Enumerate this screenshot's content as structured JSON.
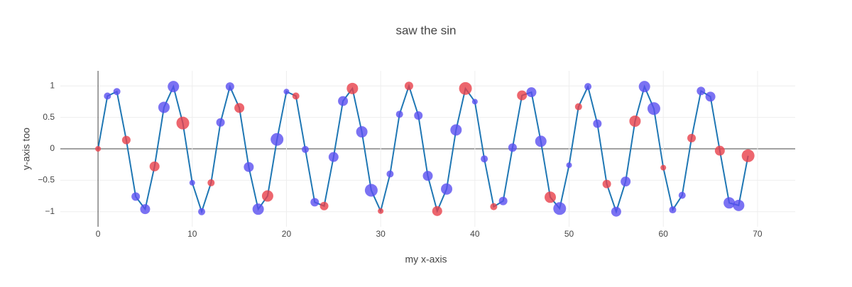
{
  "chart_data": {
    "type": "scatter",
    "title": "saw the sin",
    "x_label": "my x-axis",
    "y_label": "y-axis too",
    "x": [
      0,
      1,
      2,
      3,
      4,
      5,
      6,
      7,
      8,
      9,
      10,
      11,
      12,
      13,
      14,
      15,
      16,
      17,
      18,
      19,
      20,
      21,
      22,
      23,
      24,
      25,
      26,
      27,
      28,
      29,
      30,
      31,
      32,
      33,
      34,
      35,
      36,
      37,
      38,
      39,
      40,
      41,
      42,
      43,
      44,
      45,
      46,
      47,
      48,
      49,
      50,
      51,
      52,
      53,
      54,
      55,
      56,
      57,
      58,
      59,
      60,
      61,
      62,
      63,
      64,
      65,
      66,
      67,
      68,
      69
    ],
    "values": [
      0,
      0.84,
      0.91,
      0.14,
      -0.76,
      -0.96,
      -0.28,
      0.66,
      0.99,
      0.41,
      -0.54,
      -1.0,
      -0.54,
      0.42,
      0.99,
      0.65,
      -0.29,
      -0.96,
      -0.75,
      0.15,
      0.91,
      0.84,
      -0.01,
      -0.85,
      -0.91,
      -0.13,
      0.76,
      0.96,
      0.27,
      -0.66,
      -0.99,
      -0.4,
      0.55,
      1.0,
      0.53,
      -0.43,
      -0.99,
      -0.64,
      0.3,
      0.96,
      0.75,
      -0.16,
      -0.92,
      -0.83,
      0.02,
      0.85,
      0.9,
      0.12,
      -0.77,
      -0.95,
      -0.26,
      0.67,
      0.99,
      0.4,
      -0.56,
      -1.0,
      -0.52,
      0.44,
      0.99,
      0.64,
      -0.3,
      -0.97,
      -0.74,
      0.17,
      0.92,
      0.83,
      -0.03,
      -0.86,
      -0.9,
      -0.11
    ],
    "sizes": [
      8,
      10,
      10,
      12,
      12,
      14,
      14,
      16,
      16,
      18,
      8,
      10,
      10,
      12,
      12,
      14,
      14,
      16,
      16,
      18,
      8,
      10,
      10,
      12,
      12,
      14,
      14,
      16,
      16,
      18,
      8,
      10,
      10,
      12,
      12,
      14,
      14,
      16,
      16,
      18,
      8,
      10,
      10,
      12,
      12,
      14,
      14,
      16,
      16,
      18,
      8,
      10,
      10,
      12,
      12,
      14,
      14,
      16,
      16,
      18,
      8,
      10,
      10,
      12,
      12,
      14,
      14,
      16,
      16,
      18
    ],
    "marker_colors": [
      "#e8404a",
      "#5a4ff0",
      "#5a4ff0",
      "#e8404a",
      "#5a4ff0",
      "#5a4ff0",
      "#e8404a",
      "#5a4ff0",
      "#5a4ff0",
      "#e8404a",
      "#5a4ff0",
      "#5a4ff0",
      "#e8404a",
      "#5a4ff0",
      "#5a4ff0",
      "#e8404a",
      "#5a4ff0",
      "#5a4ff0",
      "#e8404a",
      "#5a4ff0",
      "#5a4ff0",
      "#e8404a",
      "#5a4ff0",
      "#5a4ff0",
      "#e8404a",
      "#5a4ff0",
      "#5a4ff0",
      "#e8404a",
      "#5a4ff0",
      "#5a4ff0",
      "#e8404a",
      "#5a4ff0",
      "#5a4ff0",
      "#e8404a",
      "#5a4ff0",
      "#5a4ff0",
      "#e8404a",
      "#5a4ff0",
      "#5a4ff0",
      "#e8404a",
      "#5a4ff0",
      "#5a4ff0",
      "#e8404a",
      "#5a4ff0",
      "#5a4ff0",
      "#e8404a",
      "#5a4ff0",
      "#5a4ff0",
      "#e8404a",
      "#5a4ff0",
      "#5a4ff0",
      "#e8404a",
      "#5a4ff0",
      "#5a4ff0",
      "#e8404a",
      "#5a4ff0",
      "#5a4ff0",
      "#e8404a",
      "#5a4ff0",
      "#5a4ff0",
      "#e8404a",
      "#5a4ff0",
      "#5a4ff0",
      "#e8404a",
      "#5a4ff0",
      "#5a4ff0",
      "#e8404a",
      "#5a4ff0",
      "#5a4ff0",
      "#e8404a"
    ],
    "line_color": "#1f77b4",
    "xlim": [
      -4,
      74
    ],
    "ylim": [
      -1.24,
      1.24
    ],
    "xticks": [
      0,
      10,
      20,
      30,
      40,
      50,
      60,
      70
    ],
    "yticks": [
      {
        "value": -1,
        "label": "−1"
      },
      {
        "value": -0.5,
        "label": "−0.5"
      },
      0,
      0.5,
      1
    ],
    "grid": true
  }
}
